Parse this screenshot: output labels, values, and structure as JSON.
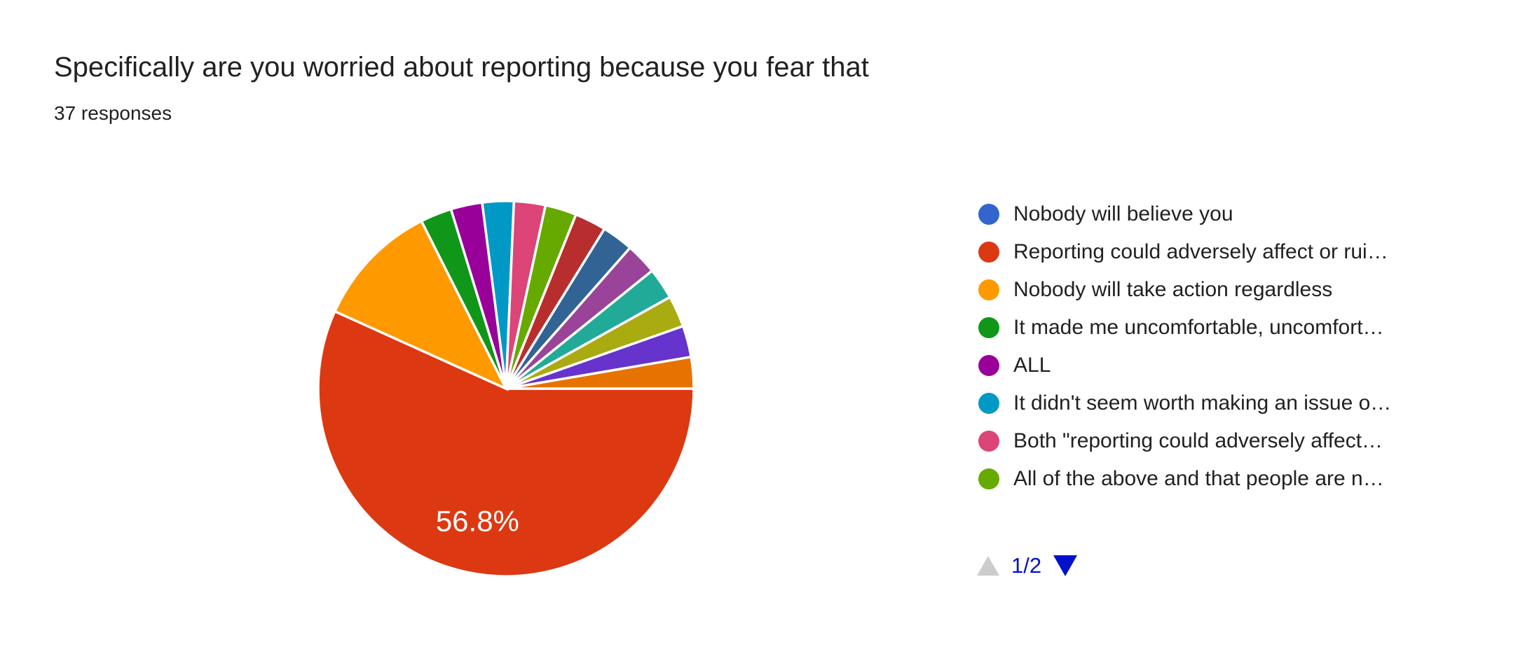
{
  "header": {
    "title": "Specifically are you worried about reporting because you fear that",
    "responses_count": "37 responses"
  },
  "chart_data": {
    "type": "pie",
    "title": "Specifically are you worried about reporting because you fear that",
    "subtitle": "37 responses",
    "total_responses": 37,
    "start_angle_deg": 90,
    "legend_position": "right",
    "visible_pct_label": "56.8%",
    "slices": [
      {
        "label": "Reporting could adversely affect or rui…",
        "count": 21,
        "pct": 56.8,
        "color": "#DC3912",
        "pct_label": "56.8%"
      },
      {
        "label": "Nobody will take action regardless",
        "count": 4,
        "pct": 10.8,
        "color": "#FF9900",
        "pct_label": ""
      },
      {
        "label": "It made me uncomfortable, uncomfort…",
        "count": 1,
        "pct": 2.7,
        "color": "#109618",
        "pct_label": ""
      },
      {
        "label": "ALL",
        "count": 1,
        "pct": 2.7,
        "color": "#990099",
        "pct_label": ""
      },
      {
        "label": "It didn't seem worth making an issue o…",
        "count": 1,
        "pct": 2.7,
        "color": "#0099C6",
        "pct_label": ""
      },
      {
        "label": "Both \"reporting could adversely affect…",
        "count": 1,
        "pct": 2.7,
        "color": "#DD4477",
        "pct_label": ""
      },
      {
        "label": "All of the above and that people are n…",
        "count": 1,
        "pct": 2.7,
        "color": "#66AA00",
        "pct_label": ""
      },
      {
        "label": "",
        "count": 1,
        "pct": 2.7,
        "color": "#B82E2E",
        "pct_label": ""
      },
      {
        "label": "",
        "count": 1,
        "pct": 2.7,
        "color": "#316395",
        "pct_label": ""
      },
      {
        "label": "",
        "count": 1,
        "pct": 2.7,
        "color": "#994499",
        "pct_label": ""
      },
      {
        "label": "",
        "count": 1,
        "pct": 2.7,
        "color": "#22AA99",
        "pct_label": ""
      },
      {
        "label": "",
        "count": 1,
        "pct": 2.7,
        "color": "#AAAA11",
        "pct_label": ""
      },
      {
        "label": "",
        "count": 1,
        "pct": 2.7,
        "color": "#6633CC",
        "pct_label": ""
      },
      {
        "label": "",
        "count": 1,
        "pct": 2.7,
        "color": "#E67300",
        "pct_label": ""
      }
    ],
    "zero_count_options": [
      {
        "label": "Nobody will believe you",
        "count": 0,
        "color": "#3366CC"
      }
    ]
  },
  "legend": {
    "items": [
      {
        "label": "Nobody will believe you",
        "color": "#3366CC"
      },
      {
        "label": "Reporting could adversely affect or rui…",
        "color": "#DC3912"
      },
      {
        "label": "Nobody will take action regardless",
        "color": "#FF9900"
      },
      {
        "label": "It made me uncomfortable, uncomfort…",
        "color": "#109618"
      },
      {
        "label": "ALL",
        "color": "#990099"
      },
      {
        "label": "It didn't seem worth making an issue o…",
        "color": "#0099C6"
      },
      {
        "label": "Both \"reporting could adversely affect…",
        "color": "#DD4477"
      },
      {
        "label": "All of the above and that people are n…",
        "color": "#66AA00"
      }
    ],
    "pagination": {
      "page_label": "1/2",
      "up_arrow_color": "#CCCCCC",
      "down_arrow_color": "#0011CC",
      "page_label_color": "#0011CC"
    }
  },
  "colors": {
    "background": "#FFFFFF",
    "title_text": "#212121",
    "legend_text": "#212121",
    "slice_label_text": "#FFFFFF",
    "slice_gap_stroke": "#FFFFFF"
  }
}
